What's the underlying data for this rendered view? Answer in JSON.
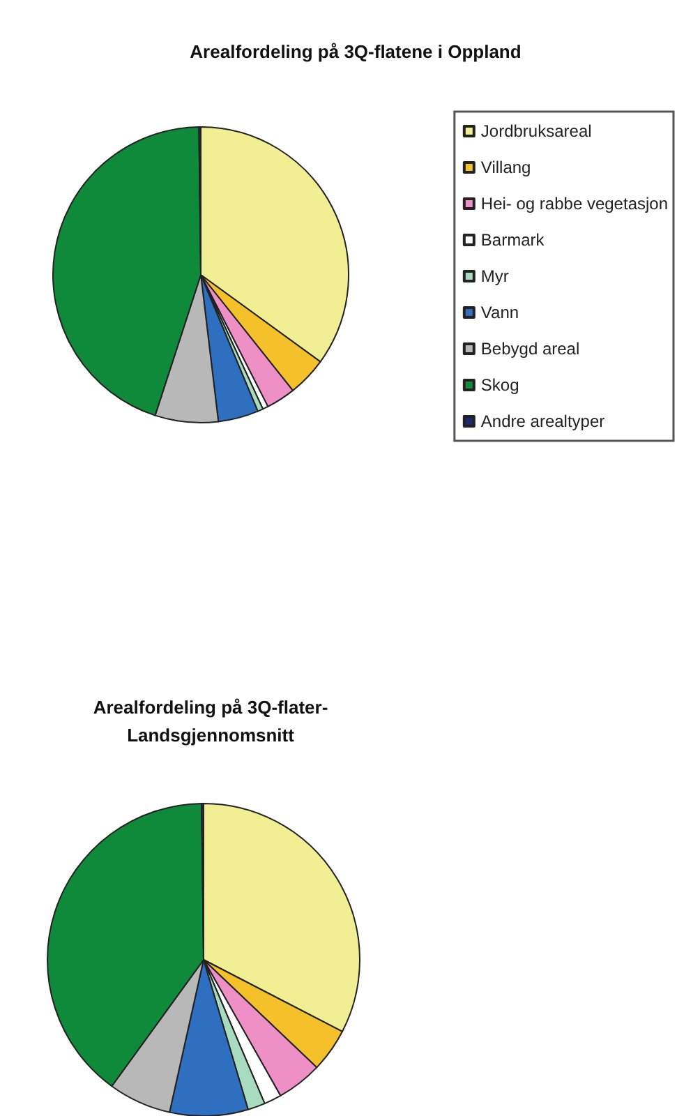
{
  "chart_data": [
    {
      "type": "pie",
      "title": "Arealfordeling på 3Q-flatene i Oppland",
      "legend": "right",
      "categories": [
        "Jordbruksareal",
        "Villang",
        "Hei- og rabbe vegetasjon",
        "Barmark",
        "Myr",
        "Vann",
        "Bebygd areal",
        "Skog",
        "Andre arealtyper"
      ],
      "values": [
        35,
        4.3,
        3.2,
        0.6,
        0.6,
        4.4,
        6.9,
        44.8,
        0.2
      ],
      "colors": [
        "#f2ee94",
        "#f5c12a",
        "#ee8fc5",
        "#ffffff",
        "#a8dbbf",
        "#2f6fc0",
        "#b8b8b8",
        "#0f8a3a",
        "#1c2a6e"
      ]
    },
    {
      "type": "pie",
      "title": "Arealfordeling på 3Q-flater-\nLandsgjennomsnitt",
      "legend": false,
      "categories": [
        null,
        null,
        null,
        null,
        null,
        null,
        null,
        null,
        null
      ],
      "values": [
        32.6,
        4.5,
        4.7,
        1.8,
        1.8,
        8.1,
        6.5,
        39.8,
        0.2
      ],
      "colors": [
        "#f2ee94",
        "#f5c12a",
        "#ee8fc5",
        "#ffffff",
        "#a8dbbf",
        "#2f6fc0",
        "#b8b8b8",
        "#0f8a3a",
        "#1c2a6e"
      ]
    }
  ]
}
